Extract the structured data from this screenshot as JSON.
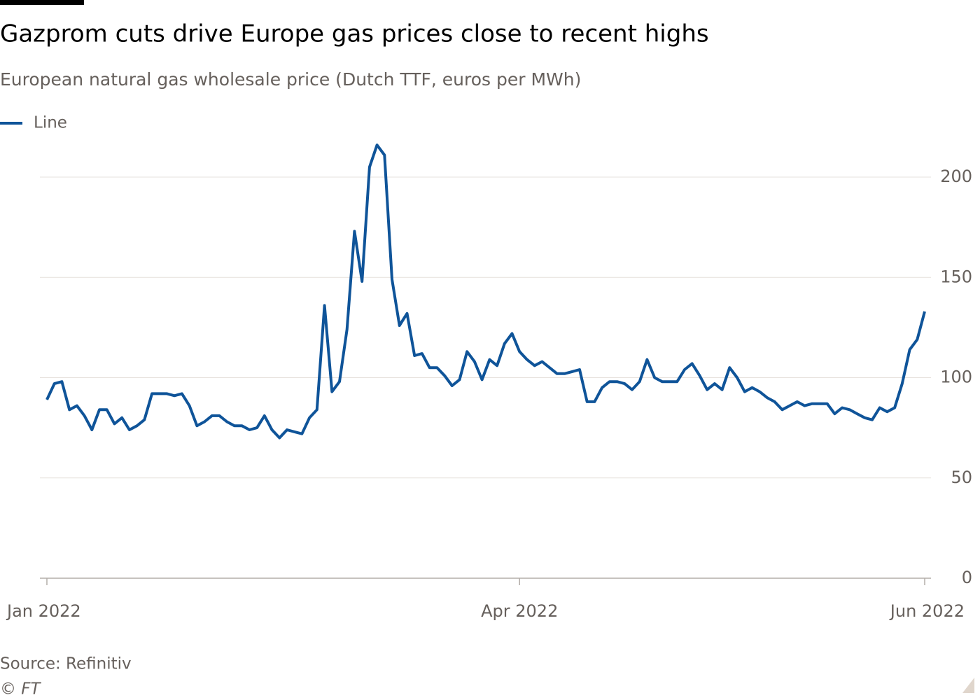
{
  "chart_data": {
    "type": "line",
    "title": "Gazprom cuts drive Europe gas prices close to recent highs",
    "subtitle": "European natural gas wholesale price (Dutch TTF, euros per MWh)",
    "source": "Source: Refinitiv",
    "credit": "© FT",
    "categories": [
      "Jan 2022",
      null,
      null,
      null,
      null,
      null,
      null,
      null,
      null,
      null,
      null,
      null,
      null,
      null,
      null,
      null,
      null,
      null,
      null,
      null,
      null,
      null,
      null,
      null,
      null,
      null,
      null,
      null,
      null,
      null,
      null,
      null,
      null,
      null,
      null,
      null,
      null,
      null,
      null,
      null,
      null,
      null,
      null,
      null,
      null,
      null,
      null,
      null,
      null,
      null,
      null,
      null,
      null,
      null,
      null,
      null,
      null,
      null,
      null,
      null,
      null,
      null,
      null,
      "Apr 2022",
      null,
      null,
      null,
      null,
      null,
      null,
      null,
      null,
      null,
      null,
      null,
      null,
      null,
      null,
      null,
      null,
      null,
      null,
      null,
      null,
      null,
      null,
      null,
      null,
      null,
      null,
      null,
      null,
      null,
      null,
      null,
      null,
      null,
      null,
      null,
      null,
      null,
      null,
      null,
      null,
      null,
      null,
      null,
      null,
      null,
      null,
      null,
      null,
      null,
      null,
      null,
      null,
      null,
      "Jun 2022"
    ],
    "series": [
      {
        "name": "Line",
        "color": "#0f5499",
        "values": [
          89,
          97,
          98,
          84,
          86,
          81,
          74,
          84,
          84,
          77,
          80,
          74,
          76,
          79,
          92,
          92,
          92,
          91,
          92,
          86,
          76,
          78,
          81,
          81,
          78,
          76,
          76,
          74,
          75,
          81,
          74,
          70,
          74,
          73,
          72,
          80,
          84,
          136,
          93,
          98,
          124,
          173,
          148,
          205,
          216,
          211,
          149,
          126,
          132,
          111,
          112,
          105,
          105,
          101,
          96,
          99,
          113,
          108,
          99,
          109,
          106,
          117,
          122,
          113,
          109,
          106,
          108,
          105,
          102,
          102,
          103,
          104,
          88,
          88,
          95,
          98,
          98,
          97,
          94,
          98,
          109,
          100,
          98,
          98,
          98,
          104,
          107,
          101,
          94,
          97,
          94,
          105,
          100,
          93,
          95,
          93,
          90,
          88,
          84,
          86,
          88,
          86,
          87,
          87,
          87,
          82,
          85,
          84,
          82,
          80,
          79,
          85,
          83,
          85,
          97,
          114,
          119,
          133
        ]
      }
    ],
    "ylim": [
      0,
      220
    ],
    "yticks": [
      0,
      50,
      100,
      150,
      200
    ],
    "grid": true,
    "legend": "top-left"
  }
}
